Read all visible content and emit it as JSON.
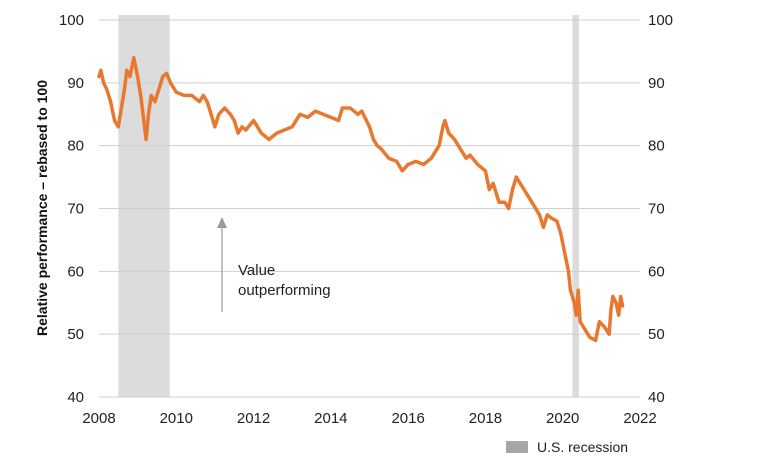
{
  "chart_data": {
    "type": "line",
    "ylabel": "Relative performance – rebased to 100",
    "xlim": [
      2008,
      2022
    ],
    "ylim": [
      40,
      100
    ],
    "x_ticks": [
      "2008",
      "2010",
      "2012",
      "2014",
      "2016",
      "2018",
      "2020",
      "2022"
    ],
    "y_ticks_left": [
      "40",
      "50",
      "60",
      "70",
      "80",
      "90",
      "100"
    ],
    "y_ticks_right": [
      "40",
      "50",
      "60",
      "70",
      "80",
      "90",
      "100"
    ],
    "grid": "horizontal",
    "recessions": [
      {
        "start": 2008.5,
        "end": 2009.83
      },
      {
        "start": 2020.25,
        "end": 2020.42
      }
    ],
    "annotation": {
      "text_line1": "Value",
      "text_line2": "outperforming",
      "arrow": "up"
    },
    "legend": {
      "label": "U.S. recession",
      "color": "#a6a6a6",
      "placement": "bottom-right"
    },
    "colors": {
      "line": "#e8782f",
      "recession": "#dcdcdc",
      "grid": "#cfcfcf"
    },
    "series": [
      {
        "points": [
          [
            2008.0,
            91
          ],
          [
            2008.05,
            92
          ],
          [
            2008.12,
            90
          ],
          [
            2008.2,
            89
          ],
          [
            2008.3,
            87
          ],
          [
            2008.4,
            84
          ],
          [
            2008.5,
            83
          ],
          [
            2008.58,
            86
          ],
          [
            2008.66,
            89
          ],
          [
            2008.72,
            92
          ],
          [
            2008.8,
            91
          ],
          [
            2008.9,
            94
          ],
          [
            2009.0,
            91
          ],
          [
            2009.08,
            88
          ],
          [
            2009.16,
            84
          ],
          [
            2009.22,
            81
          ],
          [
            2009.28,
            85
          ],
          [
            2009.35,
            88
          ],
          [
            2009.45,
            87
          ],
          [
            2009.55,
            89
          ],
          [
            2009.65,
            91
          ],
          [
            2009.75,
            91.5
          ],
          [
            2009.85,
            90
          ],
          [
            2010.0,
            88.5
          ],
          [
            2010.2,
            88
          ],
          [
            2010.4,
            88
          ],
          [
            2010.6,
            87
          ],
          [
            2010.7,
            88
          ],
          [
            2010.8,
            87
          ],
          [
            2010.9,
            85
          ],
          [
            2011.0,
            83
          ],
          [
            2011.1,
            85
          ],
          [
            2011.25,
            86
          ],
          [
            2011.4,
            85
          ],
          [
            2011.5,
            84
          ],
          [
            2011.6,
            82
          ],
          [
            2011.7,
            83
          ],
          [
            2011.8,
            82.5
          ],
          [
            2012.0,
            84
          ],
          [
            2012.2,
            82
          ],
          [
            2012.4,
            81
          ],
          [
            2012.6,
            82
          ],
          [
            2012.8,
            82.5
          ],
          [
            2013.0,
            83
          ],
          [
            2013.2,
            85
          ],
          [
            2013.4,
            84.5
          ],
          [
            2013.6,
            85.5
          ],
          [
            2013.8,
            85
          ],
          [
            2014.0,
            84.5
          ],
          [
            2014.2,
            84
          ],
          [
            2014.3,
            86
          ],
          [
            2014.5,
            86
          ],
          [
            2014.7,
            85
          ],
          [
            2014.8,
            85.5
          ],
          [
            2015.0,
            83
          ],
          [
            2015.1,
            81
          ],
          [
            2015.2,
            80
          ],
          [
            2015.3,
            79.5
          ],
          [
            2015.5,
            78
          ],
          [
            2015.7,
            77.5
          ],
          [
            2015.85,
            76
          ],
          [
            2016.0,
            77
          ],
          [
            2016.2,
            77.5
          ],
          [
            2016.4,
            77
          ],
          [
            2016.6,
            78
          ],
          [
            2016.8,
            80
          ],
          [
            2016.9,
            83
          ],
          [
            2016.95,
            84
          ],
          [
            2017.05,
            82
          ],
          [
            2017.2,
            81
          ],
          [
            2017.4,
            79
          ],
          [
            2017.5,
            78
          ],
          [
            2017.6,
            78.5
          ],
          [
            2017.8,
            77
          ],
          [
            2018.0,
            76
          ],
          [
            2018.1,
            73
          ],
          [
            2018.2,
            74
          ],
          [
            2018.35,
            71
          ],
          [
            2018.5,
            71
          ],
          [
            2018.6,
            70
          ],
          [
            2018.7,
            73
          ],
          [
            2018.8,
            75
          ],
          [
            2018.9,
            74
          ],
          [
            2019.0,
            73
          ],
          [
            2019.2,
            71
          ],
          [
            2019.4,
            69
          ],
          [
            2019.5,
            67
          ],
          [
            2019.6,
            69
          ],
          [
            2019.7,
            68.5
          ],
          [
            2019.85,
            68
          ],
          [
            2019.95,
            66
          ],
          [
            2020.05,
            63
          ],
          [
            2020.15,
            60
          ],
          [
            2020.2,
            57
          ],
          [
            2020.3,
            55
          ],
          [
            2020.35,
            53
          ],
          [
            2020.4,
            57
          ],
          [
            2020.45,
            52
          ],
          [
            2020.55,
            51
          ],
          [
            2020.7,
            49.5
          ],
          [
            2020.85,
            49
          ],
          [
            2020.95,
            52
          ],
          [
            2021.1,
            51
          ],
          [
            2021.2,
            50
          ],
          [
            2021.25,
            54
          ],
          [
            2021.3,
            56
          ],
          [
            2021.38,
            55
          ],
          [
            2021.45,
            53
          ],
          [
            2021.5,
            56
          ],
          [
            2021.55,
            54.5
          ]
        ]
      }
    ]
  }
}
